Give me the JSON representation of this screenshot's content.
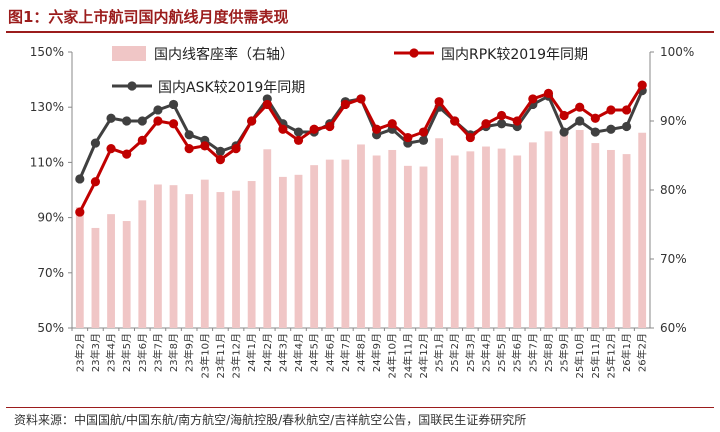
{
  "title": "图1：六家上市航司国内航线月度供需表现",
  "source": "资料来源：中国国航/中国东航/南方航空/海航控股/春秋航空/吉祥航空公告，国联民生证券研究所",
  "colors": {
    "bar": "#f0c6c6",
    "rpk": "#c00000",
    "ask": "#404040",
    "accent": "#9b1c1c"
  },
  "chart_data": {
    "type": "bar+line",
    "categories": [
      "23年2月",
      "23年3月",
      "23年4月",
      "23年5月",
      "23年6月",
      "23年7月",
      "23年8月",
      "23年9月",
      "23年10月",
      "23年11月",
      "23年12月",
      "24年1月",
      "24年2月",
      "24年3月",
      "24年4月",
      "24年5月",
      "24年6月",
      "24年7月",
      "24年8月",
      "24年9月",
      "24年10月",
      "24年11月",
      "24年12月",
      "25年1月",
      "25年2月",
      "25年3月",
      "25年4月",
      "25年5月",
      "25年6月",
      "25年7月",
      "25年8月",
      "25年9月",
      "25年10月",
      "25年11月",
      "25年12月",
      "26年1月",
      "26年2月"
    ],
    "y_left": {
      "min": 50,
      "max": 150,
      "step": 20,
      "unit": "%",
      "ticks": [
        "50%",
        "70%",
        "90%",
        "110%",
        "130%",
        "150%"
      ]
    },
    "y_right": {
      "min": 60,
      "max": 100,
      "step": 10,
      "unit": "%",
      "ticks": [
        "60%",
        "70%",
        "80%",
        "90%",
        "100%"
      ]
    },
    "series": [
      {
        "name": "国内线客座率（右轴）",
        "type": "bar",
        "axis": "right",
        "values": [
          77.5,
          74.5,
          76.5,
          75.5,
          78.5,
          80.8,
          80.7,
          79.4,
          81.5,
          79.7,
          79.9,
          81.3,
          85.9,
          81.9,
          82.2,
          83.6,
          84.4,
          84.4,
          86.6,
          85.0,
          85.8,
          83.5,
          83.4,
          87.5,
          85.0,
          85.6,
          86.3,
          86.0,
          85.0,
          86.9,
          88.5,
          88.4,
          88.7,
          86.8,
          85.8,
          85.2,
          88.3
        ]
      },
      {
        "name": "国内RPK较2019年同期",
        "type": "line",
        "axis": "left",
        "values": [
          92.0,
          103.0,
          115.0,
          113.0,
          118.0,
          125.0,
          124.0,
          115.0,
          116.0,
          111.0,
          115.0,
          125.0,
          131.0,
          122.0,
          118.0,
          122.0,
          123.0,
          131.0,
          133.0,
          122.0,
          124.0,
          119.0,
          121.0,
          132.0,
          125.0,
          119.0,
          124.0,
          127.0,
          125.0,
          133.0,
          135.0,
          127.0,
          130.0,
          126.0,
          129.0,
          129.0,
          138.0
        ]
      },
      {
        "name": "国内ASK较2019年同期",
        "type": "line",
        "axis": "left",
        "values": [
          104.0,
          117.0,
          126.0,
          125.0,
          125.0,
          129.0,
          131.0,
          120.0,
          118.0,
          114.0,
          116.0,
          125.0,
          133.0,
          124.0,
          121.0,
          121.0,
          124.0,
          132.0,
          133.0,
          120.0,
          122.0,
          117.0,
          118.0,
          130.0,
          125.0,
          120.0,
          123.0,
          124.0,
          123.0,
          131.0,
          134.0,
          121.0,
          125.0,
          121.0,
          122.0,
          123.0,
          136.0
        ]
      }
    ],
    "legend": {
      "placement": "top"
    },
    "grid": false
  }
}
